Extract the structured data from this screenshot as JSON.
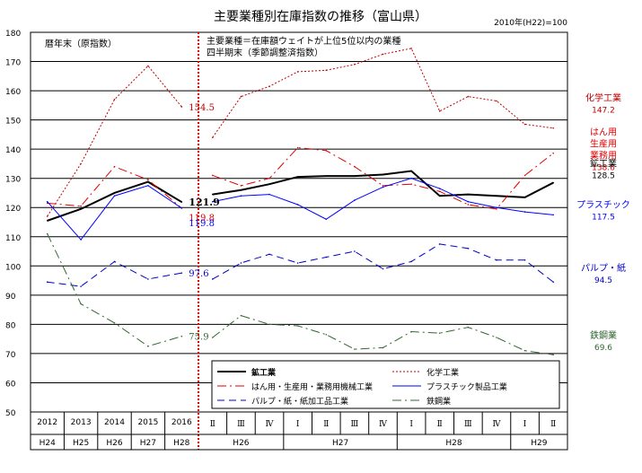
{
  "chart_data": {
    "type": "line",
    "title": "主要業種別在庫指数の推移（富山県）",
    "base_note": "2010年(H22)=100",
    "ylim": [
      50,
      180
    ],
    "yticks": [
      50,
      60,
      70,
      80,
      90,
      100,
      110,
      120,
      130,
      140,
      150,
      160,
      170,
      180
    ],
    "left_panel": {
      "note": "暦年末（原指数）",
      "years": [
        "2012",
        "2013",
        "2014",
        "2015",
        "2016"
      ],
      "eras": [
        "H24",
        "H25",
        "H26",
        "H27",
        "H28"
      ]
    },
    "right_panel": {
      "note_line1": "主要業種＝在庫額ウェイトが上位5位以内の業種",
      "note_line2": "四半期末（季節調整済指数）",
      "quarters": [
        "Ⅱ",
        "Ⅲ",
        "Ⅳ",
        "Ⅰ",
        "Ⅱ",
        "Ⅲ",
        "Ⅳ",
        "Ⅰ",
        "Ⅱ",
        "Ⅲ",
        "Ⅳ",
        "Ⅰ",
        "Ⅱ"
      ],
      "year_groups": [
        {
          "label": "H26",
          "count": 3
        },
        {
          "label": "H27",
          "count": 4
        },
        {
          "label": "H28",
          "count": 4
        },
        {
          "label": "H29",
          "count": 2
        }
      ]
    },
    "series": [
      {
        "key": "kou",
        "name": "鉱工業",
        "color": "#000000",
        "width": 2,
        "dash": "",
        "annual": [
          115.5,
          119.5,
          125,
          128.8,
          121.9
        ],
        "quarterly": [
          124.5,
          126,
          128,
          130.5,
          130.8,
          130.8,
          131.3,
          132.5,
          124,
          124.5,
          124,
          123.5,
          128.5
        ]
      },
      {
        "key": "kagaku",
        "name": "化学工業",
        "color": "#c00000",
        "width": 1,
        "dash": "2,2",
        "annual": [
          117,
          135,
          157,
          168.5,
          154.5
        ],
        "quarterly": [
          144,
          158,
          161.5,
          166.5,
          167,
          169,
          172.5,
          174.5,
          153,
          158,
          156.5,
          148.5,
          147.2
        ]
      },
      {
        "key": "hanyou",
        "name": "はん用・生産用・業務用機械工業",
        "color": "#e00000",
        "width": 1,
        "dash": "10,4,2,4",
        "annual": [
          121.5,
          120.5,
          134,
          129.5,
          119.8
        ],
        "quarterly": [
          131,
          127.5,
          130,
          140.5,
          139.5,
          134,
          127.5,
          128,
          125.5,
          121,
          119.5,
          131,
          138.6
        ]
      },
      {
        "key": "plastic",
        "name": "プラスチック製品工業",
        "color": "#0000ff",
        "width": 1,
        "dash": "",
        "annual": [
          122,
          109,
          124,
          127.5,
          119.8
        ],
        "quarterly": [
          122,
          124,
          124.5,
          121,
          116,
          122.5,
          127,
          130,
          126.5,
          122,
          120,
          118.5,
          117.5
        ]
      },
      {
        "key": "pulp",
        "name": "パルプ・紙・紙加工品工業",
        "color": "#0000cc",
        "width": 1,
        "dash": "8,5",
        "annual": [
          94.5,
          93,
          101.5,
          95.5,
          97.6
        ],
        "quarterly": [
          95.5,
          101,
          104,
          101,
          103,
          105,
          99,
          101.5,
          107.5,
          106,
          102,
          102,
          94.5
        ]
      },
      {
        "key": "tekko",
        "name": "鉄鋼業",
        "color": "#336633",
        "width": 1,
        "dash": "10,4,2,4",
        "annual": [
          111,
          87,
          80.5,
          72.5,
          75.9
        ],
        "quarterly": [
          75.5,
          83,
          80,
          79.5,
          76.5,
          71.5,
          72,
          77.5,
          77,
          79,
          75.5,
          71,
          69.6
        ]
      }
    ],
    "end_labels_left": [
      {
        "key": "kagaku",
        "text": "154.5"
      },
      {
        "key": "kou",
        "text": "121.9"
      },
      {
        "key": "hanyou",
        "text": "119.8"
      },
      {
        "key": "plastic",
        "text": "119.8"
      },
      {
        "key": "pulp",
        "text": "97.6"
      },
      {
        "key": "tekko",
        "text": "75.9"
      }
    ],
    "right_labels": [
      {
        "key": "kagaku",
        "name": "化学工業",
        "value": "147.2",
        "color": "#c00000"
      },
      {
        "key": "hanyou",
        "name_lines": [
          "はん用",
          "生産用",
          "業務用"
        ],
        "value": "138.6",
        "color": "#e00000"
      },
      {
        "key": "kou",
        "name": "鉱工業",
        "value": "128.5",
        "color": "#000000"
      },
      {
        "key": "plastic",
        "name": "プラスチック",
        "value": "117.5",
        "color": "#0000ff"
      },
      {
        "key": "pulp",
        "name": "パルプ・紙",
        "value": "94.5",
        "color": "#0000cc"
      },
      {
        "key": "tekko",
        "name": "鉄鋼業",
        "value": "69.6",
        "color": "#336633"
      }
    ],
    "legend_order": [
      "kou",
      "kagaku",
      "hanyou",
      "plastic",
      "pulp",
      "tekko"
    ],
    "grid": true,
    "divider_color": "#e00000"
  }
}
